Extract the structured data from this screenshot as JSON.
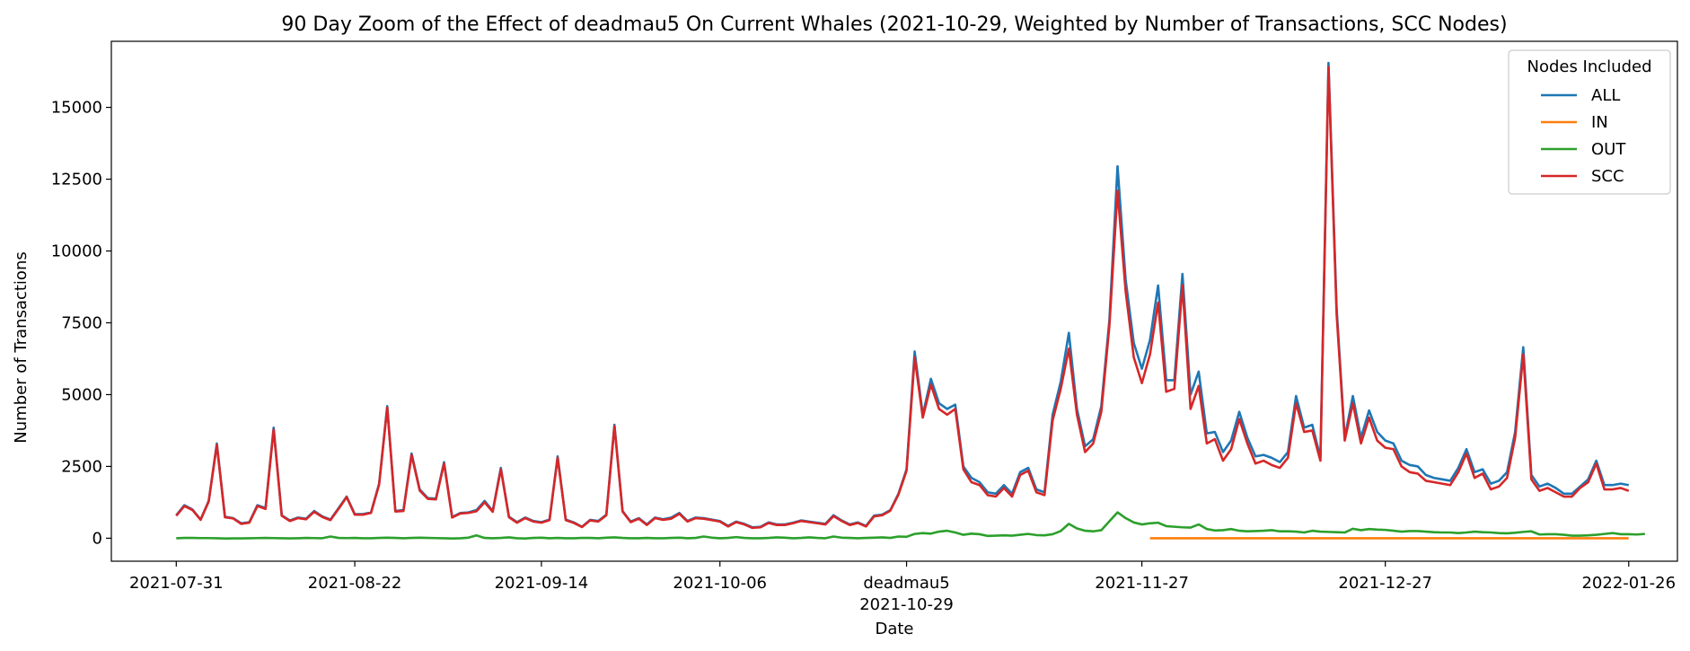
{
  "chart_data": {
    "type": "line",
    "title": "90 Day Zoom of the Effect of deadmau5 On Current Whales (2021-10-29, Weighted by Number of Transactions, SCC Nodes)",
    "xlabel": "Date",
    "ylabel": "Number of Transactions",
    "x_start": "2021-07-31",
    "x_end": "2022-01-26",
    "xlim": [
      "2021-07-23",
      "2022-02-01"
    ],
    "ylim": [
      -800,
      17300
    ],
    "yticks": [
      0,
      2500,
      5000,
      7500,
      10000,
      12500,
      15000
    ],
    "ytick_labels": [
      "0",
      "2500",
      "5000",
      "7500",
      "10000",
      "12500",
      "15000"
    ],
    "xticks": [
      "2021-07-31",
      "2021-08-22",
      "2021-09-14",
      "2021-10-06",
      "2021-10-29",
      "2021-11-27",
      "2021-12-27",
      "2022-01-26"
    ],
    "xtick_labels": [
      "2021-07-31",
      "2021-08-22",
      "2021-09-14",
      "2021-10-06",
      "2021-10-29",
      "2021-11-27",
      "2021-12-27",
      "2022-01-26"
    ],
    "event": {
      "date": "2021-10-29",
      "label": "deadmau5"
    },
    "legend": {
      "title": "Nodes Included",
      "placement": "top-right"
    },
    "grid": false,
    "series": [
      {
        "name": "ALL",
        "color": "#1f77b4",
        "x_start": "2021-07-31",
        "values": [
          800,
          1150,
          1000,
          650,
          1300,
          3300,
          750,
          700,
          520,
          560,
          1150,
          1050,
          3850,
          800,
          620,
          720,
          680,
          950,
          760,
          650,
          1050,
          1450,
          840,
          840,
          900,
          1900,
          4600,
          950,
          980,
          2950,
          1700,
          1400,
          1380,
          2650,
          740,
          880,
          900,
          980,
          1300,
          950,
          2450,
          750,
          560,
          720,
          600,
          560,
          650,
          2850,
          650,
          550,
          400,
          640,
          600,
          820,
          3950,
          950,
          580,
          700,
          480,
          720,
          660,
          720,
          880,
          600,
          720,
          700,
          650,
          600,
          430,
          580,
          500,
          380,
          400,
          550,
          480,
          480,
          540,
          620,
          580,
          540,
          500,
          800,
          620,
          480,
          550,
          430,
          790,
          820,
          980,
          1550,
          2400,
          6500,
          4300,
          5550,
          4700,
          4500,
          4650,
          2500,
          2100,
          1950,
          1600,
          1550,
          1850,
          1550,
          2300,
          2450,
          1700,
          1600,
          4300,
          5450,
          7150,
          4500,
          3200,
          3450,
          4600,
          7600,
          12950,
          9000,
          6800,
          5900,
          6900,
          8800,
          5500,
          5500,
          9200,
          5000,
          5800,
          3650,
          3700,
          3000,
          3400,
          4400,
          3500,
          2850,
          2900,
          2800,
          2650,
          3000,
          4950,
          3850,
          3950,
          2800,
          16550,
          8000,
          3500,
          4950,
          3500,
          4450,
          3700,
          3400,
          3300,
          2700,
          2550,
          2500,
          2200,
          2100,
          2050,
          2000,
          2450,
          3100,
          2300,
          2400,
          1900,
          2000,
          2300,
          3700,
          6650,
          2200,
          1800,
          1900,
          1750,
          1550,
          1550,
          1800,
          2050,
          2700,
          1850,
          1850,
          1900,
          1850
        ]
      },
      {
        "name": "IN",
        "color": "#ff7f0e",
        "x_start": "2021-11-28",
        "values": [
          0,
          0,
          0,
          0,
          0,
          0,
          0,
          0,
          0,
          0,
          0,
          0,
          0,
          0,
          0,
          0,
          0,
          0,
          0,
          0,
          0,
          0,
          0,
          0,
          0,
          0,
          0,
          0,
          0,
          0,
          0,
          0,
          0,
          0,
          0,
          0,
          0,
          0,
          0,
          0,
          0,
          0,
          0,
          0,
          0,
          0,
          0,
          0,
          0,
          0,
          0,
          0,
          0,
          0,
          0,
          0,
          0,
          0,
          0,
          0
        ]
      },
      {
        "name": "OUT",
        "color": "#2ca02c",
        "x_start": "2021-07-31",
        "values": [
          0,
          10,
          10,
          5,
          5,
          0,
          -10,
          -5,
          -5,
          0,
          5,
          10,
          5,
          0,
          -5,
          0,
          10,
          5,
          0,
          60,
          10,
          5,
          10,
          0,
          0,
          10,
          20,
          10,
          0,
          10,
          20,
          10,
          5,
          0,
          -10,
          0,
          20,
          100,
          10,
          0,
          10,
          30,
          0,
          -10,
          10,
          20,
          0,
          10,
          0,
          0,
          10,
          10,
          0,
          20,
          30,
          10,
          0,
          0,
          10,
          0,
          0,
          10,
          20,
          0,
          10,
          60,
          20,
          0,
          10,
          40,
          10,
          0,
          0,
          10,
          30,
          20,
          0,
          10,
          30,
          10,
          0,
          60,
          20,
          10,
          0,
          10,
          20,
          30,
          10,
          60,
          50,
          150,
          180,
          160,
          230,
          260,
          200,
          120,
          160,
          140,
          80,
          90,
          100,
          90,
          120,
          150,
          110,
          100,
          140,
          250,
          500,
          340,
          260,
          240,
          280,
          590,
          900,
          700,
          550,
          480,
          520,
          540,
          420,
          400,
          380,
          370,
          480,
          320,
          270,
          280,
          320,
          260,
          240,
          250,
          260,
          280,
          240,
          240,
          230,
          200,
          260,
          230,
          220,
          210,
          200,
          330,
          280,
          320,
          300,
          290,
          260,
          230,
          250,
          250,
          230,
          210,
          200,
          200,
          180,
          200,
          230,
          210,
          200,
          180,
          170,
          190,
          220,
          240,
          130,
          140,
          140,
          120,
          90,
          90,
          100,
          120,
          150,
          180,
          140,
          140,
          130,
          150
        ]
      },
      {
        "name": "SCC",
        "color": "#d62728",
        "x_start": "2021-07-31",
        "values": [
          780,
          1120,
          980,
          640,
          1280,
          3250,
          730,
          690,
          500,
          540,
          1120,
          1020,
          3780,
          780,
          600,
          700,
          660,
          920,
          740,
          630,
          1020,
          1430,
          820,
          820,
          880,
          1870,
          4550,
          930,
          950,
          2900,
          1660,
          1370,
          1350,
          2600,
          720,
          860,
          880,
          940,
          1250,
          920,
          2400,
          730,
          540,
          700,
          580,
          540,
          630,
          2800,
          630,
          530,
          390,
          620,
          580,
          800,
          3900,
          930,
          560,
          680,
          460,
          700,
          640,
          680,
          850,
          580,
          700,
          680,
          630,
          580,
          410,
          560,
          480,
          360,
          380,
          530,
          460,
          460,
          520,
          600,
          560,
          520,
          480,
          770,
          600,
          460,
          530,
          410,
          760,
          800,
          960,
          1520,
          2350,
          6300,
          4200,
          5350,
          4500,
          4300,
          4500,
          2400,
          1950,
          1850,
          1500,
          1450,
          1750,
          1450,
          2200,
          2350,
          1600,
          1500,
          4100,
          5200,
          6600,
          4300,
          3000,
          3300,
          4400,
          7400,
          12100,
          8600,
          6300,
          5400,
          6400,
          8200,
          5100,
          5200,
          8800,
          4500,
          5300,
          3300,
          3450,
          2700,
          3100,
          4150,
          3300,
          2600,
          2700,
          2550,
          2450,
          2800,
          4700,
          3700,
          3750,
          2700,
          16400,
          7800,
          3400,
          4700,
          3300,
          4200,
          3400,
          3150,
          3100,
          2500,
          2300,
          2250,
          2000,
          1950,
          1900,
          1850,
          2300,
          2950,
          2100,
          2250,
          1700,
          1800,
          2100,
          3500,
          6400,
          2050,
          1650,
          1750,
          1600,
          1450,
          1450,
          1750,
          1950,
          2600,
          1700,
          1700,
          1750,
          1650
        ]
      }
    ]
  }
}
